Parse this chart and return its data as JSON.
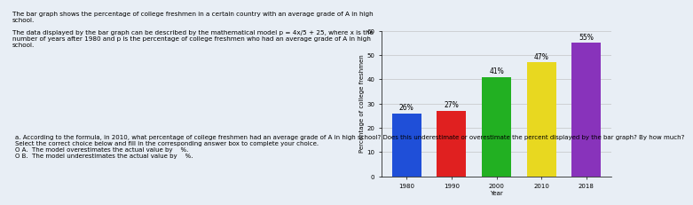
{
  "years": [
    "1980",
    "1990",
    "2000",
    "2010",
    "2018"
  ],
  "values": [
    26,
    27,
    41,
    47,
    55
  ],
  "bar_colors": [
    "#1f4fd8",
    "#e02020",
    "#22b022",
    "#e8d820",
    "#8833bb"
  ],
  "bar_labels": [
    "26%",
    "27%",
    "41%",
    "47%",
    "55%"
  ],
  "xlabel": "Year",
  "ylabel": "Percentage of college freshmen",
  "ylim": [
    0,
    60
  ],
  "yticks": [
    0,
    10,
    20,
    30,
    40,
    50,
    60
  ],
  "page_background": "#e8eef5",
  "chart_background": "#e8eef5",
  "grid_color": "#bbbbbb",
  "label_fontsize": 5.5,
  "axis_fontsize": 5,
  "tick_fontsize": 5,
  "text_lines": [
    "The bar graph shows the percentage of college freshmen in a certain country with an average grade of A in high",
    "school.",
    "",
    "The data displayed by the bar graph can be described by the mathematical model p = 4x/5 + 25, where x is the",
    "number of years after 1980 and p is the percentage of college freshmen who had an average grade of A in high",
    "school."
  ],
  "bottom_lines": [
    "a. According to the formula, in 2010, what percentage of college freshmen had an average grade of A in high school? Does this underestimate or overestimate the percent displayed by the bar graph? By how much?",
    "Select the correct choice below and fill in the corresponding answer box to complete your choice.",
    "O A.  The model overestimates the actual value by    %.",
    "O B.  The model underestimates the actual value by    %."
  ]
}
